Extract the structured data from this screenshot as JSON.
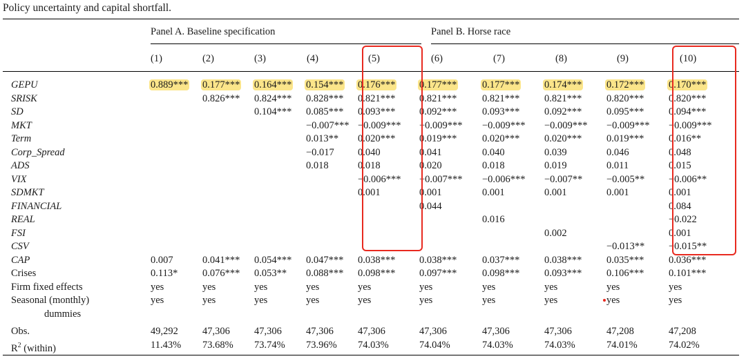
{
  "caption": "Policy uncertainty and capital shortfall.",
  "panels": {
    "a": "Panel A. Baseline specification",
    "b": "Panel B. Horse race"
  },
  "columns": [
    "(1)",
    "(2)",
    "(3)",
    "(4)",
    "(5)",
    "(6)",
    "(7)",
    "(8)",
    "(9)",
    "(10)"
  ],
  "rows": [
    {
      "label": "GEPU",
      "italic": true,
      "highlight": true,
      "values": [
        "0.889***",
        "0.177***",
        "0.164***",
        "0.154***",
        "0.176***",
        "0.177***",
        "0.177***",
        "0.174***",
        "0.172***",
        "0.170***"
      ]
    },
    {
      "label": "SRISK",
      "italic": true,
      "values": [
        "",
        "0.826***",
        "0.824***",
        "0.828***",
        "0.821***",
        "0.821***",
        "0.821***",
        "0.821***",
        "0.820***",
        "0.820***"
      ]
    },
    {
      "label": "SD",
      "italic": true,
      "values": [
        "",
        "",
        "0.104***",
        "0.085***",
        "0.093***",
        "0.092***",
        "0.093***",
        "0.092***",
        "0.095***",
        "0.094***"
      ]
    },
    {
      "label": "MKT",
      "italic": true,
      "values": [
        "",
        "",
        "",
        "−0.007***",
        "−0.009***",
        "−0.009***",
        "−0.009***",
        "−0.009***",
        "−0.009***",
        "−0.009***"
      ]
    },
    {
      "label": "Term",
      "italic": true,
      "values": [
        "",
        "",
        "",
        "0.013**",
        "0.020***",
        "0.019***",
        "0.020***",
        "0.020***",
        "0.019***",
        "0.016**"
      ]
    },
    {
      "label": "Corp_Spread",
      "italic": true,
      "values": [
        "",
        "",
        "",
        "−0.017",
        "0.040",
        "0.041",
        "0.040",
        "0.039",
        "0.046",
        "0.048"
      ]
    },
    {
      "label": "ADS",
      "italic": true,
      "values": [
        "",
        "",
        "",
        "0.018",
        "0.018",
        "0.020",
        "0.018",
        "0.019",
        "0.011",
        "0.015"
      ]
    },
    {
      "label": "VIX",
      "italic": true,
      "values": [
        "",
        "",
        "",
        "",
        "−0.006***",
        "−0.007***",
        "−0.006***",
        "−0.007**",
        "−0.005**",
        "−0.006**"
      ]
    },
    {
      "label": "SDMKT",
      "italic": true,
      "values": [
        "",
        "",
        "",
        "",
        "0.001",
        "0.001",
        "0.001",
        "0.001",
        "0.001",
        "0.001"
      ]
    },
    {
      "label": "FINANCIAL",
      "italic": true,
      "values": [
        "",
        "",
        "",
        "",
        "",
        "0.044",
        "",
        "",
        "",
        "0.084"
      ]
    },
    {
      "label": "REAL",
      "italic": true,
      "values": [
        "",
        "",
        "",
        "",
        "",
        "",
        "0.016",
        "",
        "",
        "−0.022"
      ]
    },
    {
      "label": "FSI",
      "italic": true,
      "values": [
        "",
        "",
        "",
        "",
        "",
        "",
        "",
        "0.002",
        "",
        "0.001"
      ]
    },
    {
      "label": "CSV",
      "italic": true,
      "values": [
        "",
        "",
        "",
        "",
        "",
        "",
        "",
        "",
        "−0.013**",
        "−0.015**"
      ]
    },
    {
      "label": "CAP",
      "italic": true,
      "values": [
        "0.007",
        "0.041***",
        "0.054***",
        "0.047***",
        "0.038***",
        "0.038***",
        "0.037***",
        "0.038***",
        "0.035***",
        "0.036***"
      ]
    },
    {
      "label": "Crises",
      "italic": false,
      "values": [
        "0.113*",
        "0.076***",
        "0.053**",
        "0.088***",
        "0.098***",
        "0.097***",
        "0.098***",
        "0.093***",
        "0.106***",
        "0.101***"
      ]
    },
    {
      "label": "Firm fixed effects",
      "italic": false,
      "values": [
        "yes",
        "yes",
        "yes",
        "yes",
        "yes",
        "yes",
        "yes",
        "yes",
        "yes",
        "yes"
      ]
    },
    {
      "label": "Seasonal (monthly)",
      "label2": "dummies",
      "italic": false,
      "two_line": true,
      "values": [
        "yes",
        "yes",
        "yes",
        "yes",
        "yes",
        "yes",
        "yes",
        "yes",
        "yes",
        "yes"
      ]
    },
    {
      "label": "Obs.",
      "italic": false,
      "gap": true,
      "values": [
        "49,292",
        "47,306",
        "47,306",
        "47,306",
        "47,306",
        "47,306",
        "47,306",
        "47,306",
        "47,208",
        "47,208"
      ]
    },
    {
      "label": "R",
      "sup": "2",
      "label_suffix": " (within)",
      "italic": false,
      "values": [
        "11.43%",
        "73.68%",
        "73.74%",
        "73.96%",
        "74.03%",
        "74.04%",
        "74.03%",
        "74.03%",
        "74.01%",
        "74.02%"
      ]
    }
  ],
  "colors": {
    "highlight": "#fbe58a",
    "box": "#e8291f"
  }
}
